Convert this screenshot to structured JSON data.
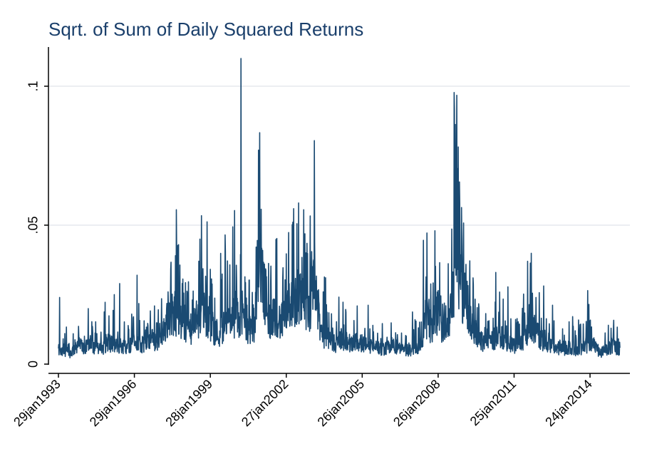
{
  "chart_data": {
    "type": "line",
    "title": "Sqrt. of Sum of Daily Squared Returns",
    "xlabel": "",
    "ylabel": "",
    "x_ticks": [
      "29jan1993",
      "29jan1996",
      "28jan1999",
      "27jan2002",
      "26jan2005",
      "26jan2008",
      "25jan2011",
      "24jan2014"
    ],
    "y_ticks": [
      "0",
      ".05",
      ".1"
    ],
    "y_tick_values": [
      0,
      0.05,
      0.1
    ],
    "ylim": [
      0,
      0.11
    ],
    "xlim": [
      "1993-01-29",
      "2015-03-31"
    ],
    "grid": true,
    "legend": "none",
    "series_color": "#1a4a72",
    "series": [
      {
        "values": [
          [
            "1993-01-29",
            0.006
          ],
          [
            "1993-02-15",
            0.024
          ],
          [
            "1993-03-10",
            0.005
          ],
          [
            "1993-05-01",
            0.011
          ],
          [
            "1993-08-01",
            0.005
          ],
          [
            "1993-11-01",
            0.009
          ],
          [
            "1994-02-04",
            0.007
          ],
          [
            "1994-04-04",
            0.02
          ],
          [
            "1994-07-01",
            0.008
          ],
          [
            "1994-10-01",
            0.006
          ],
          [
            "1995-01-10",
            0.01
          ],
          [
            "1995-04-25",
            0.008
          ],
          [
            "1995-07-01",
            0.029
          ],
          [
            "1995-10-01",
            0.008
          ],
          [
            "1996-01-01",
            0.009
          ],
          [
            "1996-03-08",
            0.032
          ],
          [
            "1996-06-01",
            0.008
          ],
          [
            "1996-08-01",
            0.012
          ],
          [
            "1996-12-01",
            0.01
          ],
          [
            "1997-04-01",
            0.015
          ],
          [
            "1997-08-01",
            0.022
          ],
          [
            "1997-10-27",
            0.043
          ],
          [
            "1997-12-01",
            0.018
          ],
          [
            "1998-03-01",
            0.014
          ],
          [
            "1998-06-01",
            0.016
          ],
          [
            "1998-08-31",
            0.045
          ],
          [
            "1998-10-01",
            0.028
          ],
          [
            "1998-12-01",
            0.018
          ],
          [
            "1999-03-01",
            0.016
          ],
          [
            "1999-06-01",
            0.013
          ],
          [
            "1999-09-01",
            0.018
          ],
          [
            "2000-01-04",
            0.02
          ],
          [
            "2000-04-14",
            0.11
          ],
          [
            "2000-05-01",
            0.02
          ],
          [
            "2000-08-01",
            0.015
          ],
          [
            "2000-11-01",
            0.018
          ],
          [
            "2001-01-03",
            0.043
          ],
          [
            "2001-03-01",
            0.035
          ],
          [
            "2001-06-01",
            0.02
          ],
          [
            "2001-09-17",
            0.022
          ],
          [
            "2001-11-01",
            0.018
          ],
          [
            "2002-02-01",
            0.02
          ],
          [
            "2002-04-01",
            0.028
          ],
          [
            "2002-07-24",
            0.058
          ],
          [
            "2002-09-01",
            0.03
          ],
          [
            "2002-12-01",
            0.022
          ],
          [
            "2003-03-24",
            0.035
          ],
          [
            "2003-06-01",
            0.015
          ],
          [
            "2003-08-01",
            0.012
          ],
          [
            "2004-01-01",
            0.009
          ],
          [
            "2004-05-01",
            0.011
          ],
          [
            "2004-08-01",
            0.008
          ],
          [
            "2004-12-01",
            0.01
          ],
          [
            "2005-04-01",
            0.008
          ],
          [
            "2005-08-01",
            0.007
          ],
          [
            "2006-01-01",
            0.007
          ],
          [
            "2006-05-01",
            0.008
          ],
          [
            "2006-09-01",
            0.006
          ],
          [
            "2007-01-01",
            0.006
          ],
          [
            "2007-02-27",
            0.016
          ],
          [
            "2007-05-01",
            0.007
          ],
          [
            "2007-08-01",
            0.02
          ],
          [
            "2007-11-01",
            0.015
          ],
          [
            "2008-01-22",
            0.023
          ],
          [
            "2008-04-01",
            0.015
          ],
          [
            "2008-07-01",
            0.017
          ],
          [
            "2008-09-29",
            0.04
          ],
          [
            "2008-10-10",
            0.068
          ],
          [
            "2008-11-01",
            0.058
          ],
          [
            "2008-12-01",
            0.035
          ],
          [
            "2009-03-01",
            0.03
          ],
          [
            "2009-06-01",
            0.016
          ],
          [
            "2009-09-01",
            0.011
          ],
          [
            "2010-01-01",
            0.009
          ],
          [
            "2010-05-06",
            0.033
          ],
          [
            "2010-06-01",
            0.015
          ],
          [
            "2010-09-01",
            0.01
          ],
          [
            "2011-01-01",
            0.008
          ],
          [
            "2011-04-01",
            0.008
          ],
          [
            "2011-08-08",
            0.037
          ],
          [
            "2011-09-01",
            0.021
          ],
          [
            "2011-12-01",
            0.015
          ],
          [
            "2012-04-01",
            0.009
          ],
          [
            "2012-08-01",
            0.008
          ],
          [
            "2013-01-01",
            0.007
          ],
          [
            "2013-06-24",
            0.012
          ],
          [
            "2013-10-01",
            0.007
          ],
          [
            "2014-02-01",
            0.01
          ],
          [
            "2014-06-01",
            0.005
          ],
          [
            "2014-10-15",
            0.014
          ],
          [
            "2015-01-01",
            0.008
          ],
          [
            "2015-03-31",
            0.006
          ]
        ]
      }
    ]
  }
}
